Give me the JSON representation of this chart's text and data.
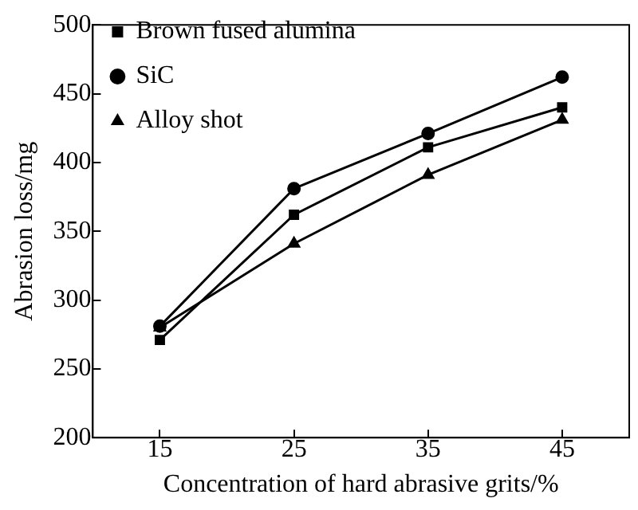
{
  "chart_data": {
    "type": "line",
    "xlabel": "Concentration of hard abrasive grits/%",
    "ylabel": "Abrasion loss/mg",
    "x": [
      15,
      25,
      35,
      45
    ],
    "series": [
      {
        "name": "Brown fused alumina",
        "color": "#000000",
        "marker": "square",
        "values": [
          271,
          362,
          411,
          440
        ]
      },
      {
        "name": "SiC",
        "color": "#000000",
        "marker": "circle",
        "values": [
          281,
          381,
          421,
          462
        ]
      },
      {
        "name": "Alloy shot",
        "color": "#000000",
        "marker": "triangle",
        "values": [
          280,
          341,
          391,
          431
        ]
      }
    ],
    "xlim": [
      10,
      50
    ],
    "xticks": [
      15,
      25,
      35,
      45
    ],
    "ylim": [
      200,
      500
    ],
    "yticks": [
      200,
      250,
      300,
      350,
      400,
      450,
      500
    ],
    "grid": false,
    "legend": "top left",
    "line_style": "solid"
  }
}
